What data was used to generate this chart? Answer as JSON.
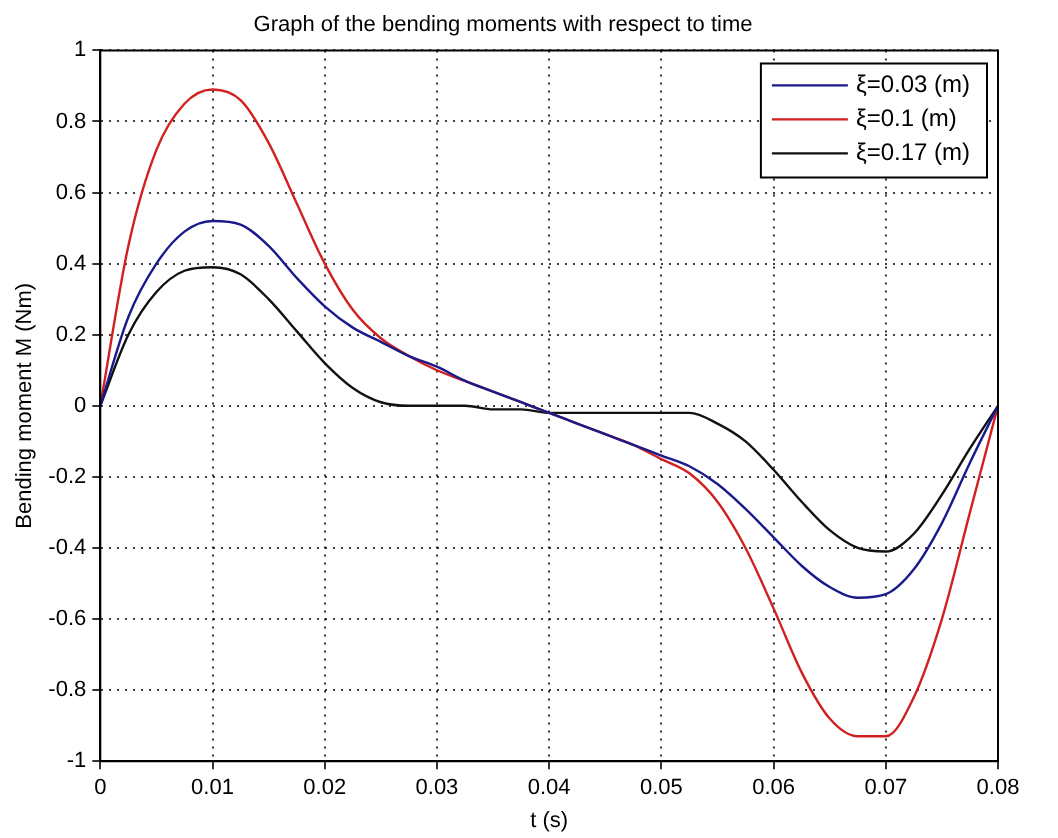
{
  "chart_data": {
    "type": "line",
    "title": "Graph of the bending moments with respect to time",
    "xlabel": "t (s)",
    "ylabel": "Bending moment M (Nm)",
    "x": [
      0,
      0.0025,
      0.005,
      0.0075,
      0.01,
      0.0125,
      0.015,
      0.0175,
      0.02,
      0.0225,
      0.025,
      0.0275,
      0.03,
      0.0325,
      0.035,
      0.0375,
      0.04,
      0.0425,
      0.045,
      0.0475,
      0.05,
      0.0525,
      0.055,
      0.0575,
      0.06,
      0.0625,
      0.065,
      0.0675,
      0.07,
      0.0725,
      0.075,
      0.0775,
      0.08
    ],
    "series": [
      {
        "name": "ξ=0.03 (m)",
        "color": "#1a1a8c",
        "values": [
          0,
          0.25,
          0.4,
          0.49,
          0.52,
          0.51,
          0.45,
          0.36,
          0.28,
          0.22,
          0.18,
          0.14,
          0.11,
          0.07,
          0.04,
          0.01,
          -0.02,
          -0.05,
          -0.08,
          -0.11,
          -0.14,
          -0.17,
          -0.22,
          -0.29,
          -0.37,
          -0.45,
          -0.51,
          -0.54,
          -0.53,
          -0.46,
          -0.33,
          -0.16,
          0
        ]
      },
      {
        "name": "ξ=0.1 (m)",
        "color": "#d02020",
        "values": [
          0,
          0.45,
          0.72,
          0.85,
          0.89,
          0.86,
          0.74,
          0.57,
          0.4,
          0.27,
          0.19,
          0.14,
          0.1,
          0.07,
          0.04,
          0.01,
          -0.02,
          -0.05,
          -0.08,
          -0.11,
          -0.15,
          -0.19,
          -0.27,
          -0.4,
          -0.57,
          -0.75,
          -0.88,
          -0.93,
          -0.93,
          -0.82,
          -0.6,
          -0.3,
          0
        ]
      },
      {
        "name": "ξ=0.17 (m)",
        "color": "#111111",
        "values": [
          0,
          0.2,
          0.32,
          0.38,
          0.39,
          0.37,
          0.3,
          0.21,
          0.12,
          0.05,
          0.01,
          0,
          0,
          0,
          -0.01,
          -0.01,
          -0.02,
          -0.02,
          -0.02,
          -0.02,
          -0.02,
          -0.02,
          -0.05,
          -0.1,
          -0.18,
          -0.27,
          -0.35,
          -0.4,
          -0.41,
          -0.36,
          -0.25,
          -0.12,
          0
        ]
      }
    ],
    "xlim": [
      0,
      0.08
    ],
    "xticks": [
      0,
      0.01,
      0.02,
      0.03,
      0.04,
      0.05,
      0.06,
      0.07,
      0.08
    ],
    "ylim": [
      -1,
      1
    ],
    "yticks": [
      -1,
      -0.8,
      -0.6,
      -0.4,
      -0.2,
      0,
      0.2,
      0.4,
      0.6,
      0.8,
      1
    ],
    "grid": true,
    "legend": "top right",
    "marker": "none",
    "line_style": "solid"
  }
}
